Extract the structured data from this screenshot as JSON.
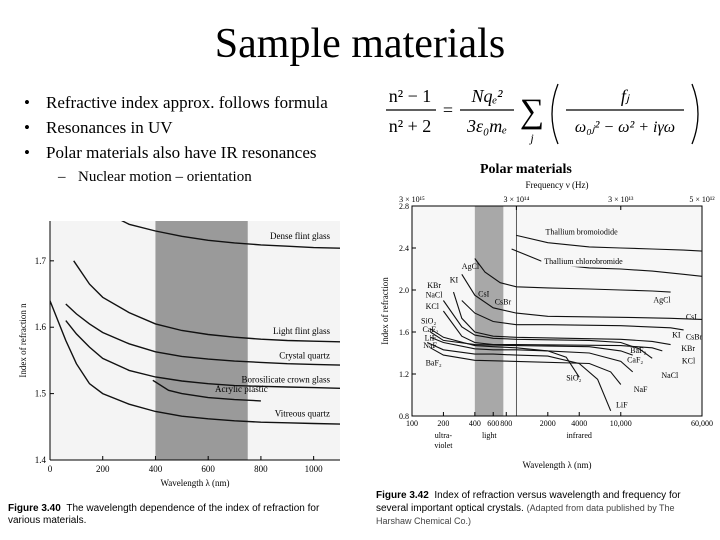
{
  "slide": {
    "title": "Sample materials",
    "bullets": [
      {
        "text": "Refractive index approx. follows formula",
        "level": 1
      },
      {
        "text": "Resonances in UV",
        "level": 1
      },
      {
        "text": "Polar materials also have IR resonances",
        "level": 1
      },
      {
        "text": "Nuclear motion – orientation",
        "level": 2
      }
    ],
    "formula": {
      "lhs_top": "n² − 1",
      "lhs_bottom": "n² + 2",
      "rhs_coef_top": "Nqₑ²",
      "rhs_coef_bottom": "3ε₀mₑ",
      "sum_index": "j",
      "term_top": "fⱼ",
      "term_bottom": "ω₀ⱼ² − ω² + iγω"
    },
    "polar_label": "Polar materials"
  },
  "chart_data": [
    {
      "type": "line",
      "xlabel": "Wavelength λ (nm)",
      "ylabel": "Index of refraction n",
      "xlim": [
        0,
        1100
      ],
      "ylim": [
        1.4,
        1.76
      ],
      "xticks": [
        0,
        200,
        400,
        600,
        800,
        1000
      ],
      "yticks": [
        1.4,
        1.5,
        1.6,
        1.7
      ],
      "shaded_band": [
        400,
        750
      ],
      "series": [
        {
          "name": "Dense flint glass",
          "x": [
            130,
            200,
            300,
            400,
            500,
            600,
            700,
            800,
            900,
            1000,
            1100
          ],
          "y": [
            1.79,
            1.775,
            1.755,
            1.745,
            1.737,
            1.731,
            1.727,
            1.724,
            1.722,
            1.72,
            1.719
          ]
        },
        {
          "name": "Light flint glass",
          "x": [
            90,
            150,
            200,
            300,
            400,
            500,
            600,
            700,
            800,
            900,
            1000,
            1100
          ],
          "y": [
            1.7,
            1.665,
            1.645,
            1.622,
            1.605,
            1.595,
            1.589,
            1.585,
            1.582,
            1.58,
            1.579,
            1.578
          ]
        },
        {
          "name": "Crystal quartz",
          "x": [
            60,
            100,
            150,
            200,
            300,
            400,
            500,
            600,
            700,
            800,
            900,
            1000,
            1100
          ],
          "y": [
            1.635,
            1.62,
            1.605,
            1.592,
            1.575,
            1.563,
            1.556,
            1.552,
            1.549,
            1.547,
            1.545,
            1.544,
            1.543
          ]
        },
        {
          "name": "Borosilicate crown glass",
          "x": [
            60,
            100,
            150,
            200,
            300,
            400,
            500,
            600,
            700,
            800,
            900,
            1000,
            1100
          ],
          "y": [
            1.61,
            1.59,
            1.57,
            1.553,
            1.535,
            1.525,
            1.519,
            1.515,
            1.512,
            1.511,
            1.51,
            1.509,
            1.508
          ]
        },
        {
          "name": "Acrylic plastic",
          "x": [
            390,
            450,
            500,
            600,
            700,
            800
          ],
          "y": [
            1.52,
            1.505,
            1.5,
            1.494,
            1.491,
            1.489
          ]
        },
        {
          "name": "Vitreous quartz",
          "x": [
            0,
            60,
            100,
            150,
            200,
            300,
            400,
            500,
            600,
            700,
            800,
            900,
            1000,
            1100
          ],
          "y": [
            1.64,
            1.58,
            1.545,
            1.515,
            1.5,
            1.484,
            1.473,
            1.466,
            1.462,
            1.459,
            1.457,
            1.456,
            1.455,
            1.454
          ]
        }
      ],
      "caption_label": "Figure 3.40",
      "caption": "The wavelength dependence of the index of refraction for various materials."
    },
    {
      "type": "line",
      "xlabel": "Wavelength λ (nm)",
      "ylabel": "Index of refraction",
      "top_label": "Frequency ν (Hz)",
      "x_scale": "log",
      "xlim": [
        100,
        60000
      ],
      "ylim": [
        0.8,
        2.8
      ],
      "xticks": [
        {
          "v": 100,
          "l": "100"
        },
        {
          "v": 200,
          "l": "200"
        },
        {
          "v": 400,
          "l": "400"
        },
        {
          "v": 600,
          "l": "600"
        },
        {
          "v": 800,
          "l": "800"
        },
        {
          "v": 2000,
          "l": "2000"
        },
        {
          "v": 4000,
          "l": "4000"
        },
        {
          "v": 10000,
          "l": "10,000"
        },
        {
          "v": 60000,
          "l": "60,000"
        }
      ],
      "yticks": [
        0.8,
        1.2,
        1.6,
        2.0,
        2.4,
        2.8
      ],
      "top_ticks": [
        {
          "v": 100,
          "l": "3 × 10¹⁵"
        },
        {
          "v": 1000,
          "l": "3 × 10¹⁴"
        },
        {
          "v": 10000,
          "l": "3 × 10¹³"
        },
        {
          "v": 60000,
          "l": "5 × 10¹²"
        }
      ],
      "region_labels": [
        {
          "text": "ultra-",
          "v": 200,
          "row": 0
        },
        {
          "text": "violet",
          "v": 200,
          "row": 1
        },
        {
          "text": "light",
          "v": 550,
          "row": 0
        },
        {
          "text": "infrared",
          "v": 4000,
          "row": 0
        }
      ],
      "shaded_band": [
        400,
        750
      ],
      "series": [
        {
          "name": "Thallium bromoiodide",
          "x": [
            1000,
            2000,
            5000,
            10000,
            20000,
            40000,
            60000
          ],
          "y": [
            2.52,
            2.45,
            2.41,
            2.4,
            2.39,
            2.38,
            2.37
          ]
        },
        {
          "name": "Thallium chlorobromide",
          "x": [
            900,
            2000,
            5000,
            10000,
            20000,
            40000,
            60000
          ],
          "y": [
            2.39,
            2.25,
            2.21,
            2.2,
            2.18,
            2.15,
            2.13
          ]
        },
        {
          "name": "AgCl",
          "x": [
            400,
            500,
            700,
            1000,
            2000,
            5000,
            10000,
            20000,
            30000
          ],
          "y": [
            2.3,
            2.17,
            2.07,
            2.03,
            2.02,
            2.01,
            2.0,
            1.99,
            1.98
          ]
        },
        {
          "name": "CsI",
          "x": [
            300,
            400,
            600,
            1000,
            2000,
            10000,
            30000,
            60000
          ],
          "y": [
            2.15,
            1.95,
            1.83,
            1.78,
            1.75,
            1.74,
            1.73,
            1.72
          ]
        },
        {
          "name": "CsBr",
          "x": [
            300,
            400,
            600,
            1000,
            2000,
            10000,
            30000,
            40000
          ],
          "y": [
            1.9,
            1.78,
            1.7,
            1.67,
            1.67,
            1.66,
            1.64,
            1.62
          ]
        },
        {
          "name": "KBr",
          "x": [
            250,
            300,
            400,
            600,
            1000,
            10000,
            20000,
            30000
          ],
          "y": [
            1.98,
            1.73,
            1.6,
            1.56,
            1.55,
            1.53,
            1.51,
            1.48
          ]
        },
        {
          "name": "NaCl",
          "x": [
            200,
            300,
            400,
            600,
            1000,
            5000,
            10000,
            15000,
            20000
          ],
          "y": [
            1.9,
            1.65,
            1.57,
            1.54,
            1.53,
            1.52,
            1.5,
            1.44,
            1.35
          ]
        },
        {
          "name": "KCl",
          "x": [
            200,
            300,
            400,
            600,
            1000,
            10000,
            20000,
            25000
          ],
          "y": [
            1.8,
            1.56,
            1.5,
            1.48,
            1.48,
            1.47,
            1.45,
            1.42
          ]
        },
        {
          "name": "SiO₂",
          "x": [
            150,
            200,
            400,
            600,
            1000,
            2000,
            3000,
            4000
          ],
          "y": [
            1.63,
            1.55,
            1.47,
            1.46,
            1.45,
            1.42,
            1.36,
            1.17
          ]
        },
        {
          "name": "CaF₂",
          "x": [
            150,
            200,
            400,
            600,
            1000,
            2000,
            5000,
            10000,
            13000
          ],
          "y": [
            1.55,
            1.5,
            1.44,
            1.43,
            1.43,
            1.42,
            1.4,
            1.32,
            1.22
          ]
        },
        {
          "name": "LiF",
          "x": [
            140,
            200,
            400,
            600,
            1000,
            2000,
            4000,
            6000,
            8000
          ],
          "y": [
            1.5,
            1.43,
            1.39,
            1.39,
            1.38,
            1.37,
            1.3,
            1.15,
            0.85
          ]
        },
        {
          "name": "NaF",
          "x": [
            150,
            200,
            400,
            1000,
            5000,
            8000,
            10000
          ],
          "y": [
            1.45,
            1.38,
            1.33,
            1.32,
            1.3,
            1.22,
            1.1
          ]
        },
        {
          "name": "BaF₂",
          "x": [
            150,
            200,
            400,
            1000,
            5000,
            10000,
            13000
          ],
          "y": [
            1.6,
            1.52,
            1.48,
            1.47,
            1.46,
            1.42,
            1.38
          ]
        }
      ],
      "curve_labels": [
        {
          "t": "Thallium bromoiodide",
          "v": 1900,
          "y": 2.53
        },
        {
          "t": "Thallium chlorobromide",
          "v": 1850,
          "y": 2.25
        },
        {
          "t": "AgCl",
          "v": 300,
          "y": 2.2
        },
        {
          "t": "KI",
          "v": 230,
          "y": 2.07
        },
        {
          "t": "KBr",
          "v": 140,
          "y": 2.02
        },
        {
          "t": "NaCl",
          "v": 135,
          "y": 1.93
        },
        {
          "t": "KCl",
          "v": 135,
          "y": 1.82
        },
        {
          "t": "SiO₂",
          "v": 122,
          "y": 1.68
        },
        {
          "t": "CaF₂",
          "v": 126,
          "y": 1.6
        },
        {
          "t": "LiF",
          "v": 132,
          "y": 1.52
        },
        {
          "t": "NaF",
          "v": 128,
          "y": 1.45
        },
        {
          "t": "BaF₂",
          "v": 135,
          "y": 1.28
        },
        {
          "t": "CsI",
          "v": 430,
          "y": 1.94
        },
        {
          "t": "CsBr",
          "v": 620,
          "y": 1.86
        },
        {
          "t": "AgCl",
          "v": 20500,
          "y": 1.88
        },
        {
          "t": "CsI",
          "v": 42000,
          "y": 1.72
        },
        {
          "t": "KI",
          "v": 31000,
          "y": 1.55
        },
        {
          "t": "CsBr",
          "v": 42000,
          "y": 1.53
        },
        {
          "t": "KBr",
          "v": 38000,
          "y": 1.42
        },
        {
          "t": "BaF₂",
          "v": 12300,
          "y": 1.4
        },
        {
          "t": "CaF₂",
          "v": 11500,
          "y": 1.31
        },
        {
          "t": "KCl",
          "v": 38500,
          "y": 1.3
        },
        {
          "t": "NaCl",
          "v": 24500,
          "y": 1.16
        },
        {
          "t": "SiO₂",
          "v": 3000,
          "y": 1.14
        },
        {
          "t": "NaF",
          "v": 13300,
          "y": 1.03
        },
        {
          "t": "LiF",
          "v": 9000,
          "y": 0.88
        }
      ],
      "caption_label": "Figure 3.42",
      "caption": "Index of refraction versus wavelength and frequency for several important optical crystals.",
      "caption_note": "(Adapted from data published by The Harshaw Chemical Co.)"
    }
  ]
}
